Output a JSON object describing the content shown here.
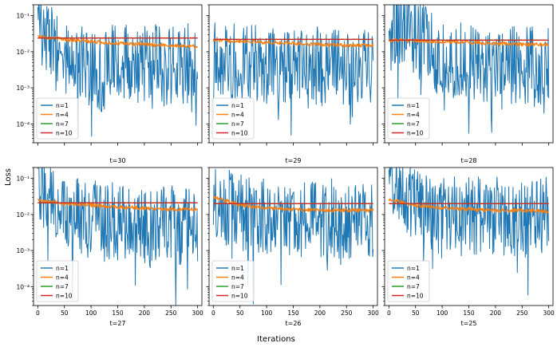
{
  "figure": {
    "ylabel": "Loss",
    "xlabel": "Iterations"
  },
  "chart_data": [
    {
      "type": "line",
      "title": "t=30",
      "xlabel": "",
      "ylabel": "",
      "yscale": "log",
      "xlim": [
        -8,
        308
      ],
      "ylim": [
        3e-05,
        0.2
      ],
      "legend": "lower-left",
      "xticks": [
        "0",
        "50",
        "100",
        "150",
        "200",
        "250",
        "300"
      ],
      "show_xticklabels": false,
      "yticks": [
        0.0001,
        0.001,
        0.01,
        0.1
      ],
      "yticklabels": [
        "10⁻⁴",
        "10⁻³",
        "10⁻²",
        "10⁻¹"
      ],
      "show_yticklabels": true,
      "series": [
        {
          "name": "n=1",
          "color": "#1f77b4",
          "x": [
            0,
            15,
            30,
            45,
            60,
            75,
            90,
            105,
            120,
            135,
            150,
            165,
            180,
            195,
            210,
            225,
            240,
            255,
            270,
            285,
            300
          ],
          "values": [
            0.085,
            0.03,
            0.012,
            0.007,
            0.004,
            0.008,
            0.003,
            0.006,
            0.002,
            0.005,
            0.004,
            0.006,
            0.003,
            0.005,
            0.004,
            0.006,
            0.003,
            0.005,
            0.004,
            0.005,
            0.004
          ]
        },
        {
          "name": "n=4",
          "color": "#ff7f0e",
          "x": [
            0,
            50,
            100,
            150,
            200,
            250,
            300
          ],
          "values": [
            0.027,
            0.022,
            0.019,
            0.017,
            0.016,
            0.015,
            0.014
          ]
        },
        {
          "name": "n=7",
          "color": "#2ca02c",
          "x": [
            0,
            300
          ],
          "values": [
            0.024,
            0.024
          ]
        },
        {
          "name": "n=10",
          "color": "#d62728",
          "x": [
            0,
            300
          ],
          "values": [
            0.024,
            0.024
          ]
        }
      ]
    },
    {
      "type": "line",
      "title": "t=29",
      "xlabel": "",
      "ylabel": "",
      "yscale": "log",
      "xlim": [
        -8,
        308
      ],
      "ylim": [
        3e-05,
        0.2
      ],
      "legend": "lower-left",
      "xticks": [
        "0",
        "50",
        "100",
        "150",
        "200",
        "250",
        "300"
      ],
      "show_xticklabels": false,
      "yticks": [
        0.0001,
        0.001,
        0.01,
        0.1
      ],
      "yticklabels": [
        "10⁻⁴",
        "10⁻³",
        "10⁻²",
        "10⁻¹"
      ],
      "show_yticklabels": false,
      "series": [
        {
          "name": "n=1",
          "color": "#1f77b4",
          "x": [
            0,
            15,
            30,
            45,
            60,
            75,
            90,
            105,
            120,
            135,
            150,
            165,
            180,
            195,
            210,
            225,
            240,
            255,
            270,
            285,
            300
          ],
          "values": [
            0.012,
            0.008,
            0.006,
            0.005,
            0.004,
            0.005,
            0.003,
            0.004,
            0.003,
            0.004,
            0.003,
            0.004,
            0.003,
            0.004,
            0.003,
            0.004,
            0.003,
            0.003,
            0.003,
            0.004,
            0.003
          ]
        },
        {
          "name": "n=4",
          "color": "#ff7f0e",
          "x": [
            0,
            50,
            100,
            150,
            200,
            250,
            300
          ],
          "values": [
            0.021,
            0.02,
            0.018,
            0.017,
            0.016,
            0.015,
            0.015
          ]
        },
        {
          "name": "n=7",
          "color": "#2ca02c",
          "x": [
            0,
            300
          ],
          "values": [
            0.022,
            0.022
          ]
        },
        {
          "name": "n=10",
          "color": "#d62728",
          "x": [
            0,
            300
          ],
          "values": [
            0.022,
            0.022
          ]
        }
      ]
    },
    {
      "type": "line",
      "title": "t=28",
      "xlabel": "",
      "ylabel": "",
      "yscale": "log",
      "xlim": [
        -8,
        308
      ],
      "ylim": [
        3e-05,
        0.2
      ],
      "legend": "lower-left",
      "xticks": [
        "0",
        "50",
        "100",
        "150",
        "200",
        "250",
        "300"
      ],
      "show_xticklabels": false,
      "yticks": [
        0.0001,
        0.001,
        0.01,
        0.1
      ],
      "yticklabels": [
        "10⁻⁴",
        "10⁻³",
        "10⁻²",
        "10⁻¹"
      ],
      "show_yticklabels": false,
      "series": [
        {
          "name": "n=1",
          "color": "#1f77b4",
          "x": [
            0,
            15,
            30,
            45,
            60,
            75,
            90,
            105,
            120,
            135,
            150,
            165,
            180,
            195,
            210,
            225,
            240,
            255,
            270,
            285,
            300
          ],
          "values": [
            0.06,
            0.05,
            0.04,
            0.03,
            0.02,
            0.012,
            0.008,
            0.007,
            0.006,
            0.005,
            0.005,
            0.004,
            0.004,
            0.005,
            0.004,
            0.004,
            0.005,
            0.004,
            0.004,
            0.003,
            0.004
          ]
        },
        {
          "name": "n=4",
          "color": "#ff7f0e",
          "x": [
            0,
            50,
            100,
            150,
            200,
            250,
            300
          ],
          "values": [
            0.021,
            0.02,
            0.019,
            0.018,
            0.017,
            0.016,
            0.016
          ]
        },
        {
          "name": "n=7",
          "color": "#2ca02c",
          "x": [
            0,
            300
          ],
          "values": [
            0.021,
            0.021
          ]
        },
        {
          "name": "n=10",
          "color": "#d62728",
          "x": [
            0,
            300
          ],
          "values": [
            0.021,
            0.021
          ]
        }
      ]
    },
    {
      "type": "line",
      "title": "t=27",
      "xlabel": "",
      "ylabel": "",
      "yscale": "log",
      "xlim": [
        -8,
        308
      ],
      "ylim": [
        3e-05,
        0.2
      ],
      "legend": "lower-left",
      "xticks": [
        "0",
        "50",
        "100",
        "150",
        "200",
        "250",
        "300"
      ],
      "show_xticklabels": true,
      "yticks": [
        0.0001,
        0.001,
        0.01,
        0.1
      ],
      "yticklabels": [
        "10⁻⁴",
        "10⁻³",
        "10⁻²",
        "10⁻¹"
      ],
      "show_yticklabels": true,
      "series": [
        {
          "name": "n=1",
          "color": "#1f77b4",
          "x": [
            0,
            15,
            30,
            45,
            60,
            75,
            90,
            105,
            120,
            135,
            150,
            165,
            180,
            195,
            210,
            225,
            240,
            255,
            270,
            285,
            300
          ],
          "values": [
            0.04,
            0.025,
            0.015,
            0.01,
            0.008,
            0.009,
            0.006,
            0.008,
            0.005,
            0.007,
            0.005,
            0.006,
            0.005,
            0.006,
            0.004,
            0.006,
            0.005,
            0.005,
            0.004,
            0.005,
            0.005
          ]
        },
        {
          "name": "n=4",
          "color": "#ff7f0e",
          "x": [
            0,
            50,
            100,
            150,
            200,
            250,
            300
          ],
          "values": [
            0.025,
            0.02,
            0.018,
            0.016,
            0.015,
            0.014,
            0.014
          ]
        },
        {
          "name": "n=7",
          "color": "#2ca02c",
          "x": [
            0,
            300
          ],
          "values": [
            0.021,
            0.021
          ]
        },
        {
          "name": "n=10",
          "color": "#d62728",
          "x": [
            0,
            300
          ],
          "values": [
            0.021,
            0.021
          ]
        }
      ]
    },
    {
      "type": "line",
      "title": "t=26",
      "xlabel": "",
      "ylabel": "",
      "yscale": "log",
      "xlim": [
        -8,
        308
      ],
      "ylim": [
        3e-05,
        0.2
      ],
      "legend": "lower-left",
      "xticks": [
        "0",
        "50",
        "100",
        "150",
        "200",
        "250",
        "300"
      ],
      "show_xticklabels": true,
      "yticks": [
        0.0001,
        0.001,
        0.01,
        0.1
      ],
      "yticklabels": [
        "10⁻⁴",
        "10⁻³",
        "10⁻²",
        "10⁻¹"
      ],
      "show_yticklabels": false,
      "series": [
        {
          "name": "n=1",
          "color": "#1f77b4",
          "x": [
            0,
            15,
            30,
            45,
            60,
            75,
            90,
            105,
            120,
            135,
            150,
            165,
            180,
            195,
            210,
            225,
            240,
            255,
            270,
            285,
            300
          ],
          "values": [
            0.025,
            0.018,
            0.014,
            0.012,
            0.01,
            0.009,
            0.008,
            0.009,
            0.007,
            0.008,
            0.007,
            0.008,
            0.007,
            0.008,
            0.007,
            0.008,
            0.007,
            0.007,
            0.007,
            0.008,
            0.007
          ]
        },
        {
          "name": "n=4",
          "color": "#ff7f0e",
          "x": [
            0,
            50,
            100,
            150,
            200,
            250,
            300
          ],
          "values": [
            0.032,
            0.018,
            0.015,
            0.014,
            0.013,
            0.013,
            0.013
          ]
        },
        {
          "name": "n=7",
          "color": "#2ca02c",
          "x": [
            0,
            300
          ],
          "values": [
            0.02,
            0.02
          ]
        },
        {
          "name": "n=10",
          "color": "#d62728",
          "x": [
            0,
            300
          ],
          "values": [
            0.02,
            0.02
          ]
        }
      ]
    },
    {
      "type": "line",
      "title": "t=25",
      "xlabel": "",
      "ylabel": "",
      "yscale": "log",
      "xlim": [
        -8,
        308
      ],
      "ylim": [
        3e-05,
        0.2
      ],
      "legend": "lower-left",
      "xticks": [
        "0",
        "50",
        "100",
        "150",
        "200",
        "250",
        "300"
      ],
      "show_xticklabels": true,
      "yticks": [
        0.0001,
        0.001,
        0.01,
        0.1
      ],
      "yticklabels": [
        "10⁻⁴",
        "10⁻³",
        "10⁻²",
        "10⁻¹"
      ],
      "show_yticklabels": false,
      "series": [
        {
          "name": "n=1",
          "color": "#1f77b4",
          "x": [
            0,
            15,
            30,
            45,
            60,
            75,
            90,
            105,
            120,
            135,
            150,
            165,
            180,
            195,
            210,
            225,
            240,
            255,
            270,
            285,
            300
          ],
          "values": [
            0.12,
            0.07,
            0.04,
            0.025,
            0.018,
            0.014,
            0.012,
            0.011,
            0.01,
            0.01,
            0.009,
            0.01,
            0.009,
            0.009,
            0.009,
            0.008,
            0.009,
            0.008,
            0.009,
            0.008,
            0.009
          ]
        },
        {
          "name": "n=4",
          "color": "#ff7f0e",
          "x": [
            0,
            50,
            100,
            150,
            200,
            250,
            300
          ],
          "values": [
            0.026,
            0.018,
            0.015,
            0.014,
            0.013,
            0.013,
            0.012
          ]
        },
        {
          "name": "n=7",
          "color": "#2ca02c",
          "x": [
            0,
            300
          ],
          "values": [
            0.02,
            0.02
          ]
        },
        {
          "name": "n=10",
          "color": "#d62728",
          "x": [
            0,
            300
          ],
          "values": [
            0.02,
            0.02
          ]
        }
      ]
    }
  ]
}
